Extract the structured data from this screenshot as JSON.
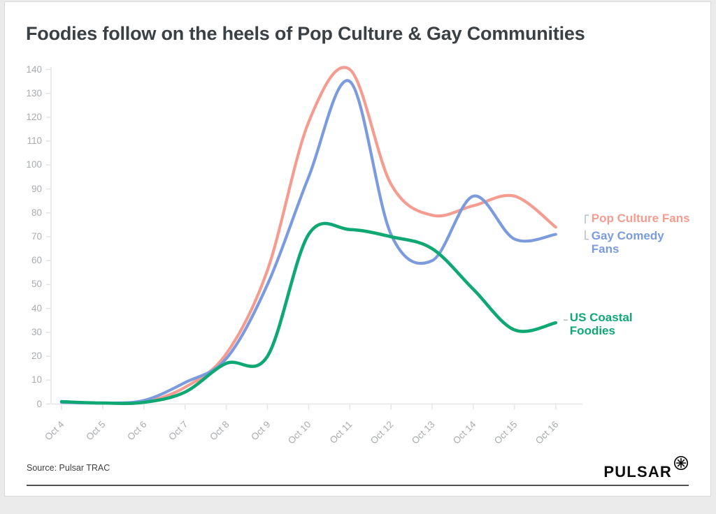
{
  "title": "Foodies follow on the heels of Pop Culture & Gay Communities",
  "footer": {
    "source": "Source: Pulsar TRAC"
  },
  "brand": {
    "wordmark": "PULSAR",
    "icon": "circled-asterisk-starburst"
  },
  "colors": {
    "pop_culture": "#F59C90",
    "gay_comedy": "#7B9BDE",
    "us_coastal": "#0FA873",
    "axis_line": "#e3e4e6",
    "axis_text": "#a8abae",
    "connector_gray": "#b9bcbe",
    "title_text": "#3b4045"
  },
  "chart_data": {
    "type": "line",
    "title": "Foodies follow on the heels of Pop Culture & Gay Communities",
    "x_labels": [
      "Oct 4",
      "Oct 5",
      "Oct 6",
      "Oct 7",
      "Oct 8",
      "Oct 9",
      "Oct 10",
      "Oct 11",
      "Oct 12",
      "Oct 13",
      "Oct 14",
      "Oct 15",
      "Oct 16"
    ],
    "ylim": [
      0,
      140
    ],
    "ytick_step": 10,
    "grid": false,
    "legend_position": "labels-at-line-ends-right",
    "series": [
      {
        "name": "Pop Culture Fans",
        "label_lines": [
          "Pop Culture Fans"
        ],
        "color": "#F59C90",
        "values": [
          0.9,
          0.4,
          0.8,
          7,
          21,
          56,
          118,
          140,
          92,
          79,
          83,
          87,
          74
        ]
      },
      {
        "name": "Gay Comedy Fans",
        "label_lines": [
          "Gay Comedy",
          "Fans"
        ],
        "color": "#7B9BDE",
        "values": [
          0.7,
          0.4,
          1.5,
          9,
          19,
          50,
          95,
          135,
          71,
          60,
          87,
          69,
          71
        ]
      },
      {
        "name": "US Coastal Foodies",
        "label_lines": [
          "US Coastal",
          "Foodies"
        ],
        "color": "#0FA873",
        "values": [
          1,
          0.4,
          0.7,
          5,
          17,
          20,
          71,
          73,
          70,
          65,
          48,
          31,
          34
        ]
      }
    ]
  }
}
